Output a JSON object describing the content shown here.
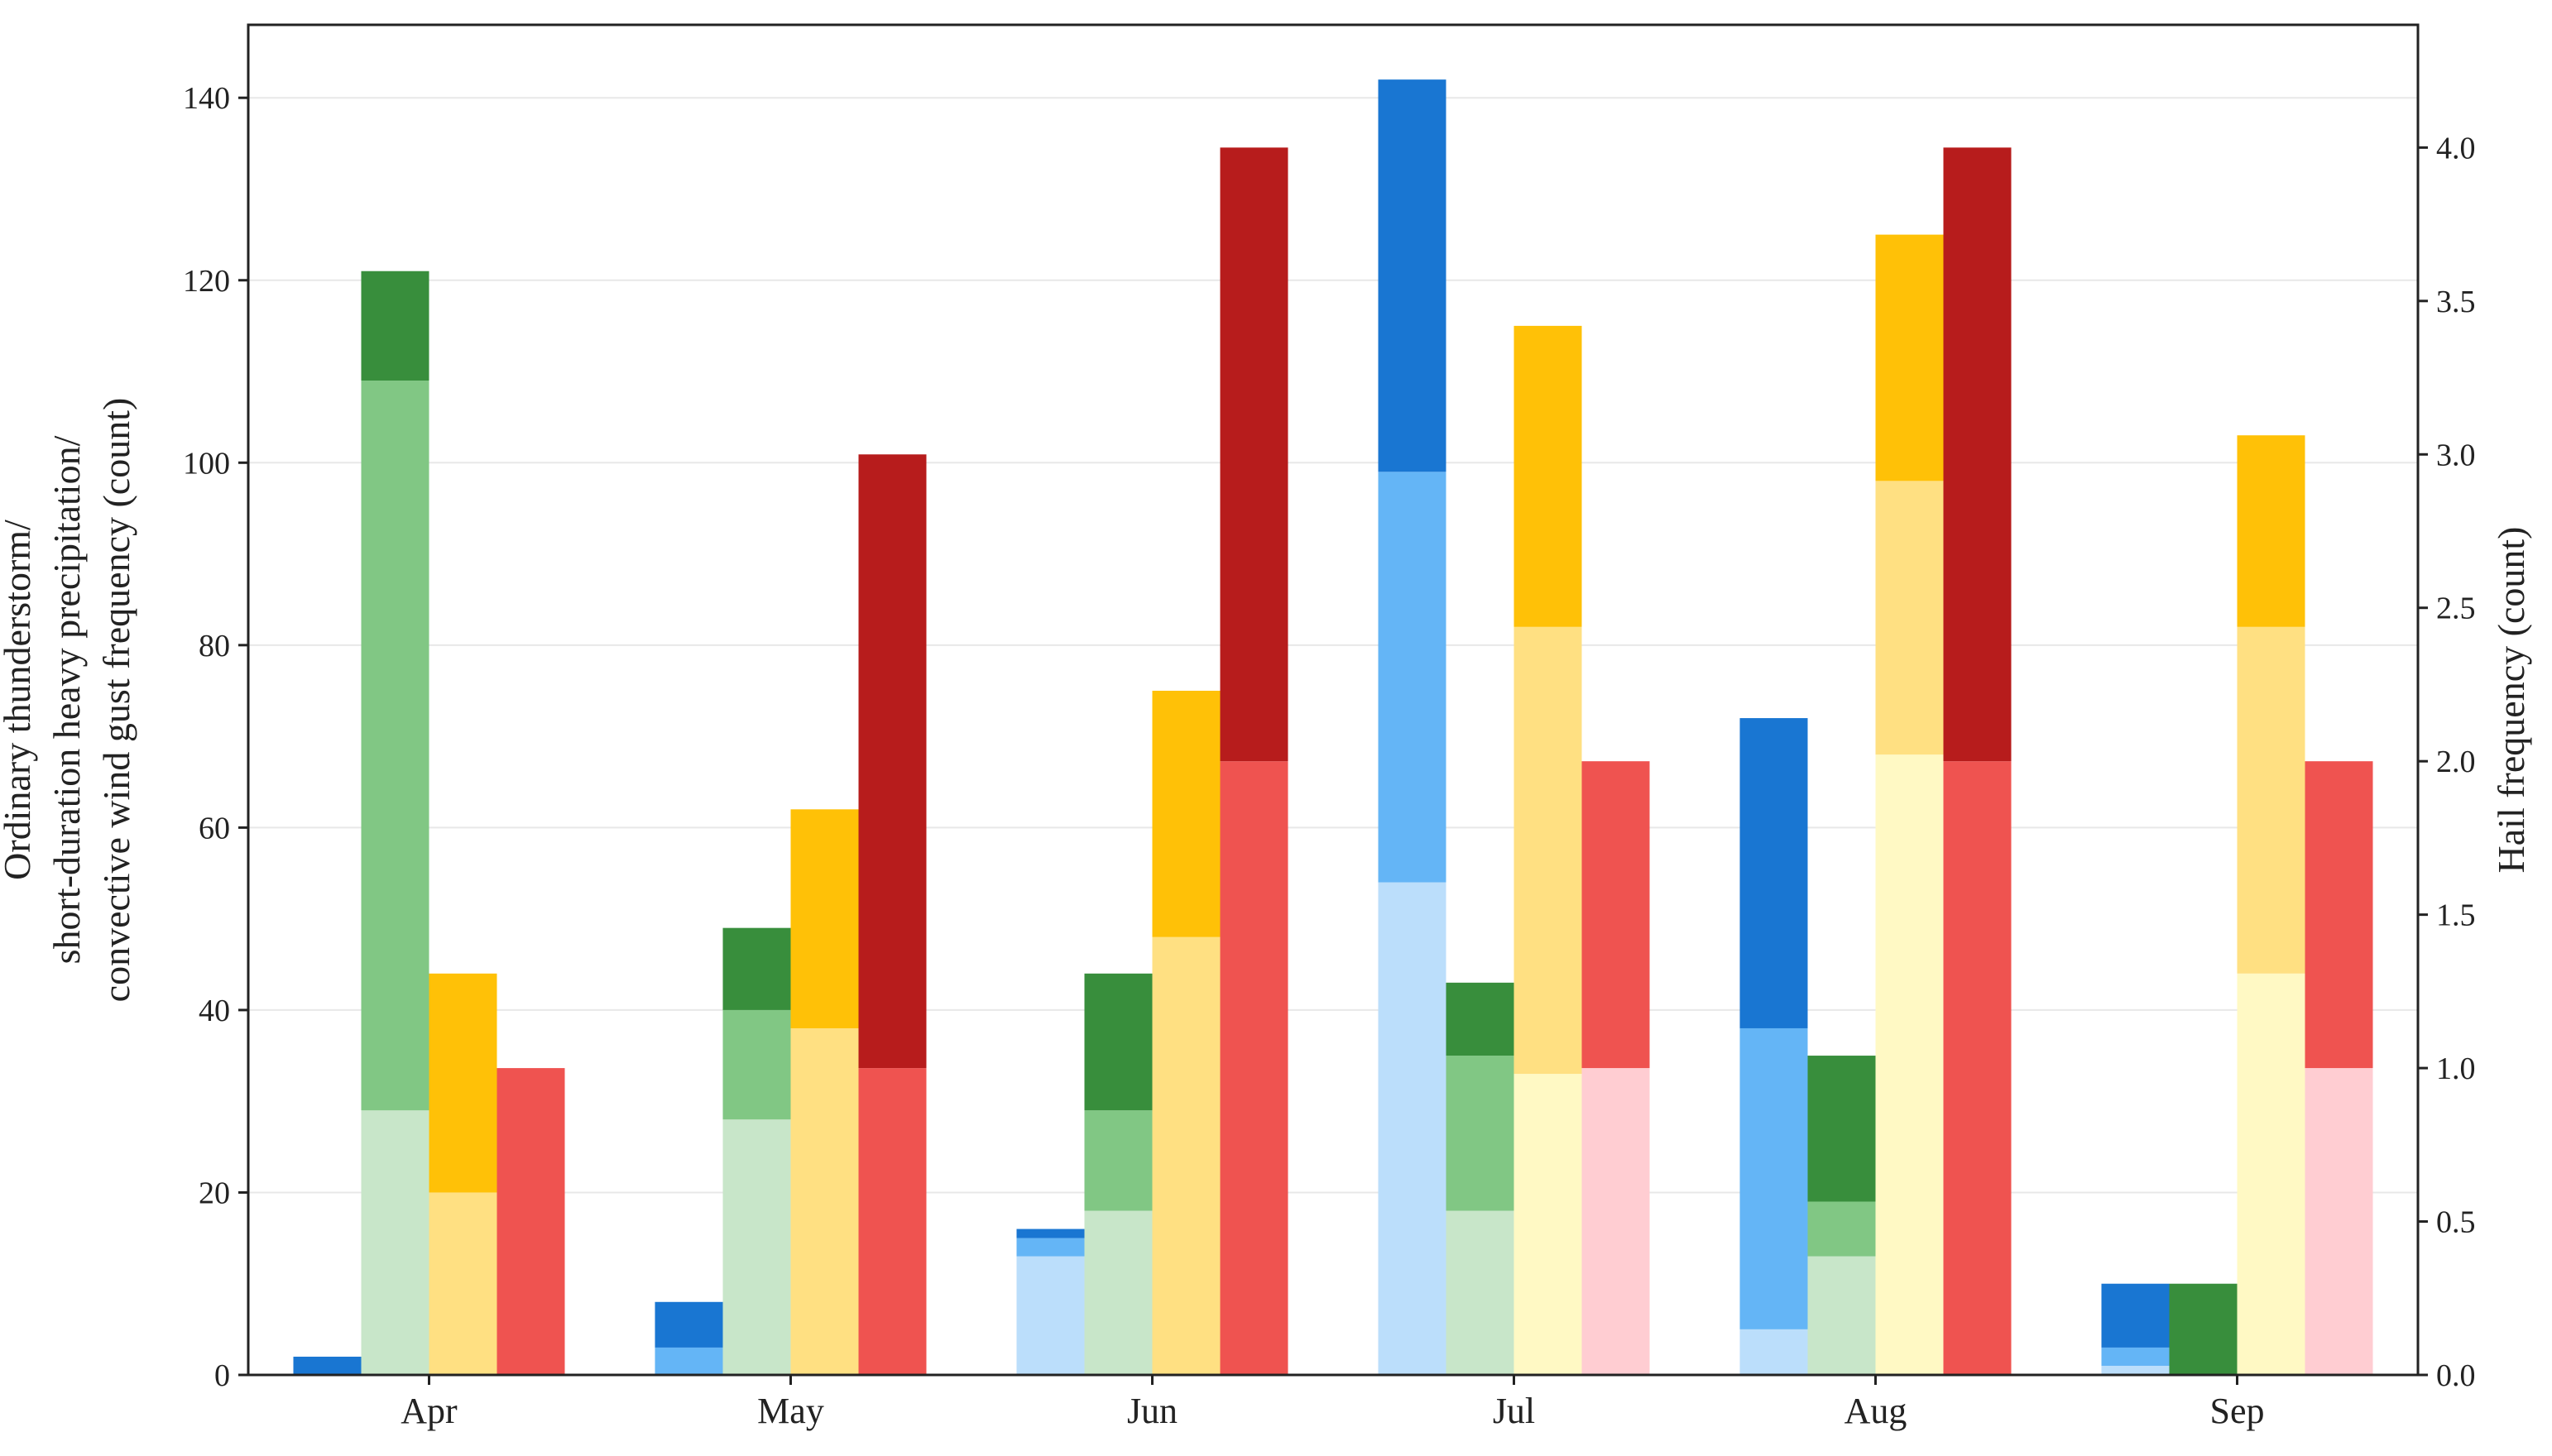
{
  "chart_data": {
    "type": "bar",
    "categories": [
      "Apr",
      "May",
      "Jun",
      "Jul",
      "Aug",
      "Sep"
    ],
    "ylabel_left": [
      "Ordinary thunderstorm/",
      "short-duration heavy precipitation/",
      "convective wind gust frequency (count)"
    ],
    "ylabel_right": "Hail frequency (count)",
    "ylim_left": [
      0,
      148
    ],
    "ylim_right": [
      0,
      4.4
    ],
    "yticks_left": [
      0,
      20,
      40,
      60,
      80,
      100,
      120,
      140
    ],
    "yticks_right": [
      "0.0",
      "0.5",
      "1.0",
      "1.5",
      "2.0",
      "2.5",
      "3.0",
      "3.5",
      "4.0"
    ],
    "grid": true,
    "stacked": true,
    "groups": [
      {
        "name": "",
        "axis": "left",
        "colors": [
          "#bbdefb",
          "#64b5f6",
          "#1976d2"
        ],
        "layers": [
          [
            0,
            0,
            13,
            54,
            5,
            1
          ],
          [
            0,
            3,
            2,
            45,
            33,
            2
          ],
          [
            2,
            5,
            1,
            43,
            34,
            7
          ]
        ]
      },
      {
        "name": "",
        "axis": "left",
        "colors": [
          "#c8e6c9",
          "#81c784",
          "#388e3c"
        ],
        "layers": [
          [
            29,
            28,
            18,
            18,
            13,
            0
          ],
          [
            80,
            12,
            11,
            17,
            6,
            0
          ],
          [
            12,
            9,
            15,
            8,
            16,
            10
          ]
        ]
      },
      {
        "name": "",
        "axis": "left",
        "colors": [
          "#fff9c4",
          "#ffe082",
          "#ffc107"
        ],
        "layers": [
          [
            0,
            0,
            0,
            33,
            68,
            44
          ],
          [
            20,
            38,
            48,
            49,
            30,
            38
          ],
          [
            24,
            24,
            27,
            33,
            27,
            21
          ]
        ]
      },
      {
        "name": "",
        "axis": "right",
        "colors": [
          "#ffcdd2",
          "#ef5350",
          "#b71c1c"
        ],
        "layers": [
          [
            0,
            0,
            0,
            1,
            0,
            1
          ],
          [
            1,
            1,
            2,
            1,
            2,
            1
          ],
          [
            0,
            2,
            2,
            0,
            2,
            0
          ]
        ]
      }
    ]
  }
}
